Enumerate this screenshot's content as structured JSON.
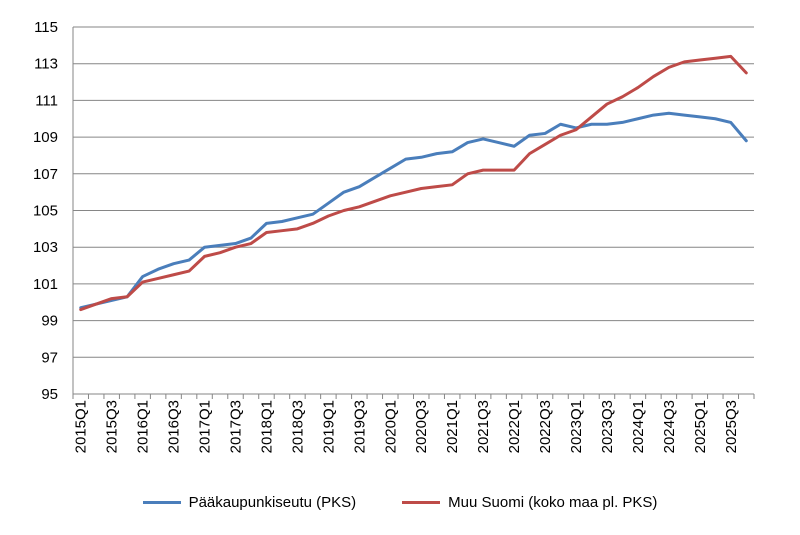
{
  "chart_data": {
    "type": "line",
    "title": "",
    "xlabel": "",
    "ylabel": "",
    "ylim": [
      95,
      115
    ],
    "yticks": [
      95,
      97,
      99,
      101,
      103,
      105,
      107,
      109,
      111,
      113,
      115
    ],
    "grid": "horizontal",
    "legend_position": "bottom",
    "x": [
      "2015Q1",
      "2015Q2",
      "2015Q3",
      "2015Q4",
      "2016Q1",
      "2016Q2",
      "2016Q3",
      "2016Q4",
      "2017Q1",
      "2017Q2",
      "2017Q3",
      "2017Q4",
      "2018Q1",
      "2018Q2",
      "2018Q3",
      "2018Q4",
      "2019Q1",
      "2019Q2",
      "2019Q3",
      "2019Q4",
      "2020Q1",
      "2020Q2",
      "2020Q3",
      "2020Q4",
      "2021Q1",
      "2021Q2",
      "2021Q3",
      "2021Q4",
      "2022Q1",
      "2022Q2",
      "2022Q3",
      "2022Q4",
      "2023Q1",
      "2023Q2",
      "2023Q3",
      "2023Q4",
      "2024Q1",
      "2024Q2",
      "2024Q3",
      "2024Q4",
      "2025Q1",
      "2025Q2",
      "2025Q3",
      "2025Q4"
    ],
    "xtick_labels": [
      "2015Q1",
      "2015Q3",
      "2016Q1",
      "2016Q3",
      "2017Q1",
      "2017Q3",
      "2018Q1",
      "2018Q3",
      "2019Q1",
      "2019Q3",
      "2020Q1",
      "2020Q3",
      "2021Q1",
      "2021Q3",
      "2022Q1",
      "2022Q3",
      "2023Q1",
      "2023Q3",
      "2024Q1",
      "2024Q3",
      "2025Q1",
      "2025Q3"
    ],
    "series": [
      {
        "name": "Pääkaupunkiseutu (PKS)",
        "color": "#4a7ebb",
        "values": [
          99.7,
          99.9,
          100.1,
          100.3,
          101.4,
          101.8,
          102.1,
          102.3,
          103.0,
          103.1,
          103.2,
          103.5,
          104.3,
          104.4,
          104.6,
          104.8,
          105.4,
          106.0,
          106.3,
          106.8,
          107.3,
          107.8,
          107.9,
          108.1,
          108.2,
          108.7,
          108.9,
          108.7,
          108.5,
          109.1,
          109.2,
          109.7,
          109.5,
          109.7,
          109.7,
          109.8,
          110.0,
          110.2,
          110.3,
          110.2,
          110.1,
          110.0,
          109.8,
          108.8
        ]
      },
      {
        "name": "Muu Suomi (koko maa pl. PKS)",
        "color": "#be4b48",
        "values": [
          99.6,
          99.9,
          100.2,
          100.3,
          101.1,
          101.3,
          101.5,
          101.7,
          102.5,
          102.7,
          103.0,
          103.2,
          103.8,
          103.9,
          104.0,
          104.3,
          104.7,
          105.0,
          105.2,
          105.5,
          105.8,
          106.0,
          106.2,
          106.3,
          106.4,
          107.0,
          107.2,
          107.2,
          107.2,
          108.1,
          108.6,
          109.1,
          109.4,
          110.1,
          110.8,
          111.2,
          111.7,
          112.3,
          112.8,
          113.1,
          113.2,
          113.3,
          113.4,
          112.5
        ]
      }
    ]
  }
}
